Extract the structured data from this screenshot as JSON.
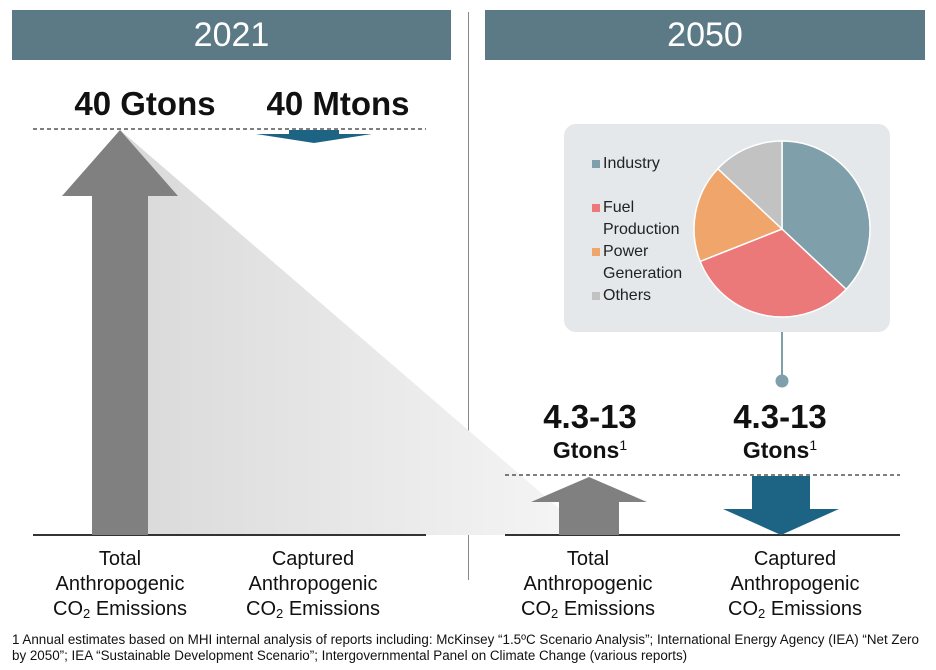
{
  "headers": {
    "left": "2021",
    "right": "2050"
  },
  "values": {
    "total_2021": "40 Gtons",
    "captured_2021": "40 Mtons",
    "total_2050": "4.3-13",
    "captured_2050": "4.3-13",
    "unit_2050": "Gtons",
    "footnote_mark": "1"
  },
  "categories": {
    "total_line1": "Total",
    "captured_line1": "Captured",
    "line2": "Anthropogenic",
    "co": "CO",
    "sub": "2",
    "emissions": " Emissions"
  },
  "footnote": "1 Annual estimates based on MHI internal analysis of reports including: McKinsey “1.5ºC Scenario Analysis”; International Energy Agency (IEA) “Net Zero by 2050”; IEA “Sustainable Development Scenario”; Intergovernmental Panel on Climate Change (various reports)",
  "colors": {
    "header": "#5b7a86",
    "total_arrow": "#808080",
    "captured_arrow": "#1d6484",
    "pie_box": "#e4e8eb"
  },
  "chart_data": [
    {
      "type": "bar",
      "title": "2021",
      "categories": [
        "Total Anthropogenic CO2 Emissions",
        "Captured Anthropogenic CO2 Emissions"
      ],
      "values": [
        "40 Gtons",
        "40 Mtons"
      ]
    },
    {
      "type": "bar",
      "title": "2050",
      "categories": [
        "Total Anthropogenic CO2 Emissions",
        "Captured Anthropogenic CO2 Emissions"
      ],
      "values": [
        "4.3-13 Gtons",
        "4.3-13 Gtons"
      ]
    },
    {
      "type": "pie",
      "legend_position": "left",
      "slices": [
        {
          "label": "Industry",
          "value": 37,
          "color": "#7fa0ab"
        },
        {
          "label": "Fuel Production",
          "value": 32,
          "color": "#ec7979"
        },
        {
          "label": "Power Generation",
          "value": 18,
          "color": "#f0a56a"
        },
        {
          "label": "Others",
          "value": 13,
          "color": "#c2c2c2"
        }
      ]
    }
  ]
}
